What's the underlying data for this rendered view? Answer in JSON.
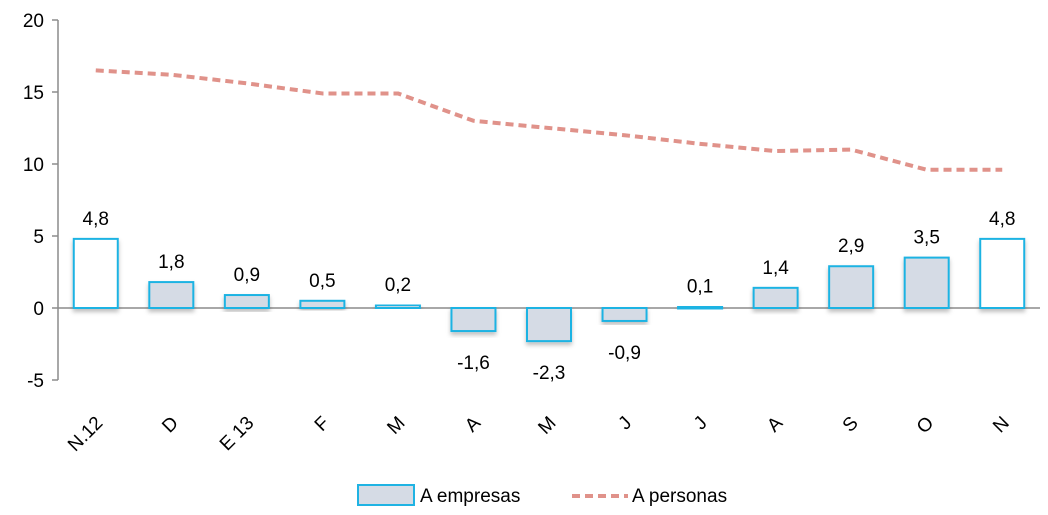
{
  "chart_data": {
    "type": "bar",
    "categories": [
      "N.12",
      "D",
      "E 13",
      "F",
      "M",
      "A",
      "M",
      "J",
      "J",
      "A",
      "S",
      "O",
      "N"
    ],
    "series": [
      {
        "name": "A empresas",
        "kind": "bar",
        "values": [
          4.8,
          1.8,
          0.9,
          0.5,
          0.2,
          -1.6,
          -2.3,
          -0.9,
          0.1,
          1.4,
          2.9,
          3.5,
          4.8
        ],
        "data_labels": [
          "4,8",
          "1,8",
          "0,9",
          "0,5",
          "0,2",
          "-1,6",
          "-2,3",
          "-0,9",
          "0,1",
          "1,4",
          "2,9",
          "3,5",
          "4,8"
        ],
        "outlined_only": [
          true,
          false,
          false,
          false,
          false,
          false,
          false,
          false,
          false,
          false,
          false,
          false,
          true
        ],
        "fill_color": "#d5dbe5",
        "stroke_color": "#1fb3e3"
      },
      {
        "name": "A personas",
        "kind": "line",
        "style": "dashed",
        "values": [
          16.5,
          16.2,
          15.6,
          14.9,
          14.9,
          13.0,
          12.5,
          12.0,
          11.4,
          10.9,
          11.0,
          9.6,
          9.6
        ],
        "color": "#e0928a"
      }
    ],
    "yticks": [
      -5,
      0,
      5,
      10,
      15,
      20
    ],
    "ylim": [
      -5,
      20
    ],
    "legend": "bottom",
    "grid": false
  }
}
